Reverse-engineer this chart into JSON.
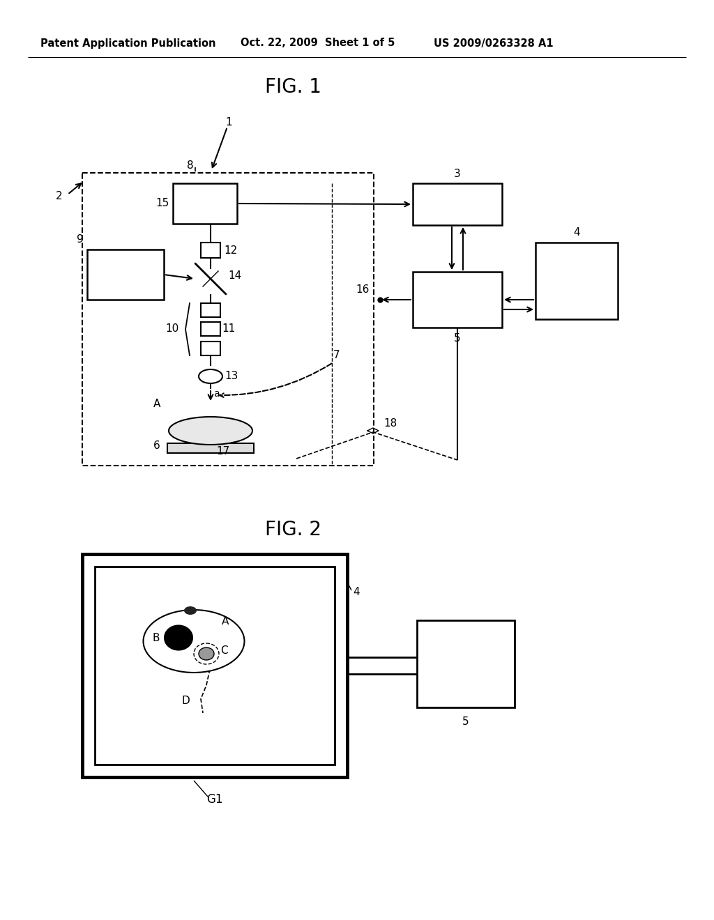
{
  "title": "FIG. 1",
  "title2": "FIG. 2",
  "header_left": "Patent Application Publication",
  "header_mid": "Oct. 22, 2009  Sheet 1 of 5",
  "header_right": "US 2009/0263328 A1",
  "bg_color": "#ffffff",
  "line_color": "#000000"
}
